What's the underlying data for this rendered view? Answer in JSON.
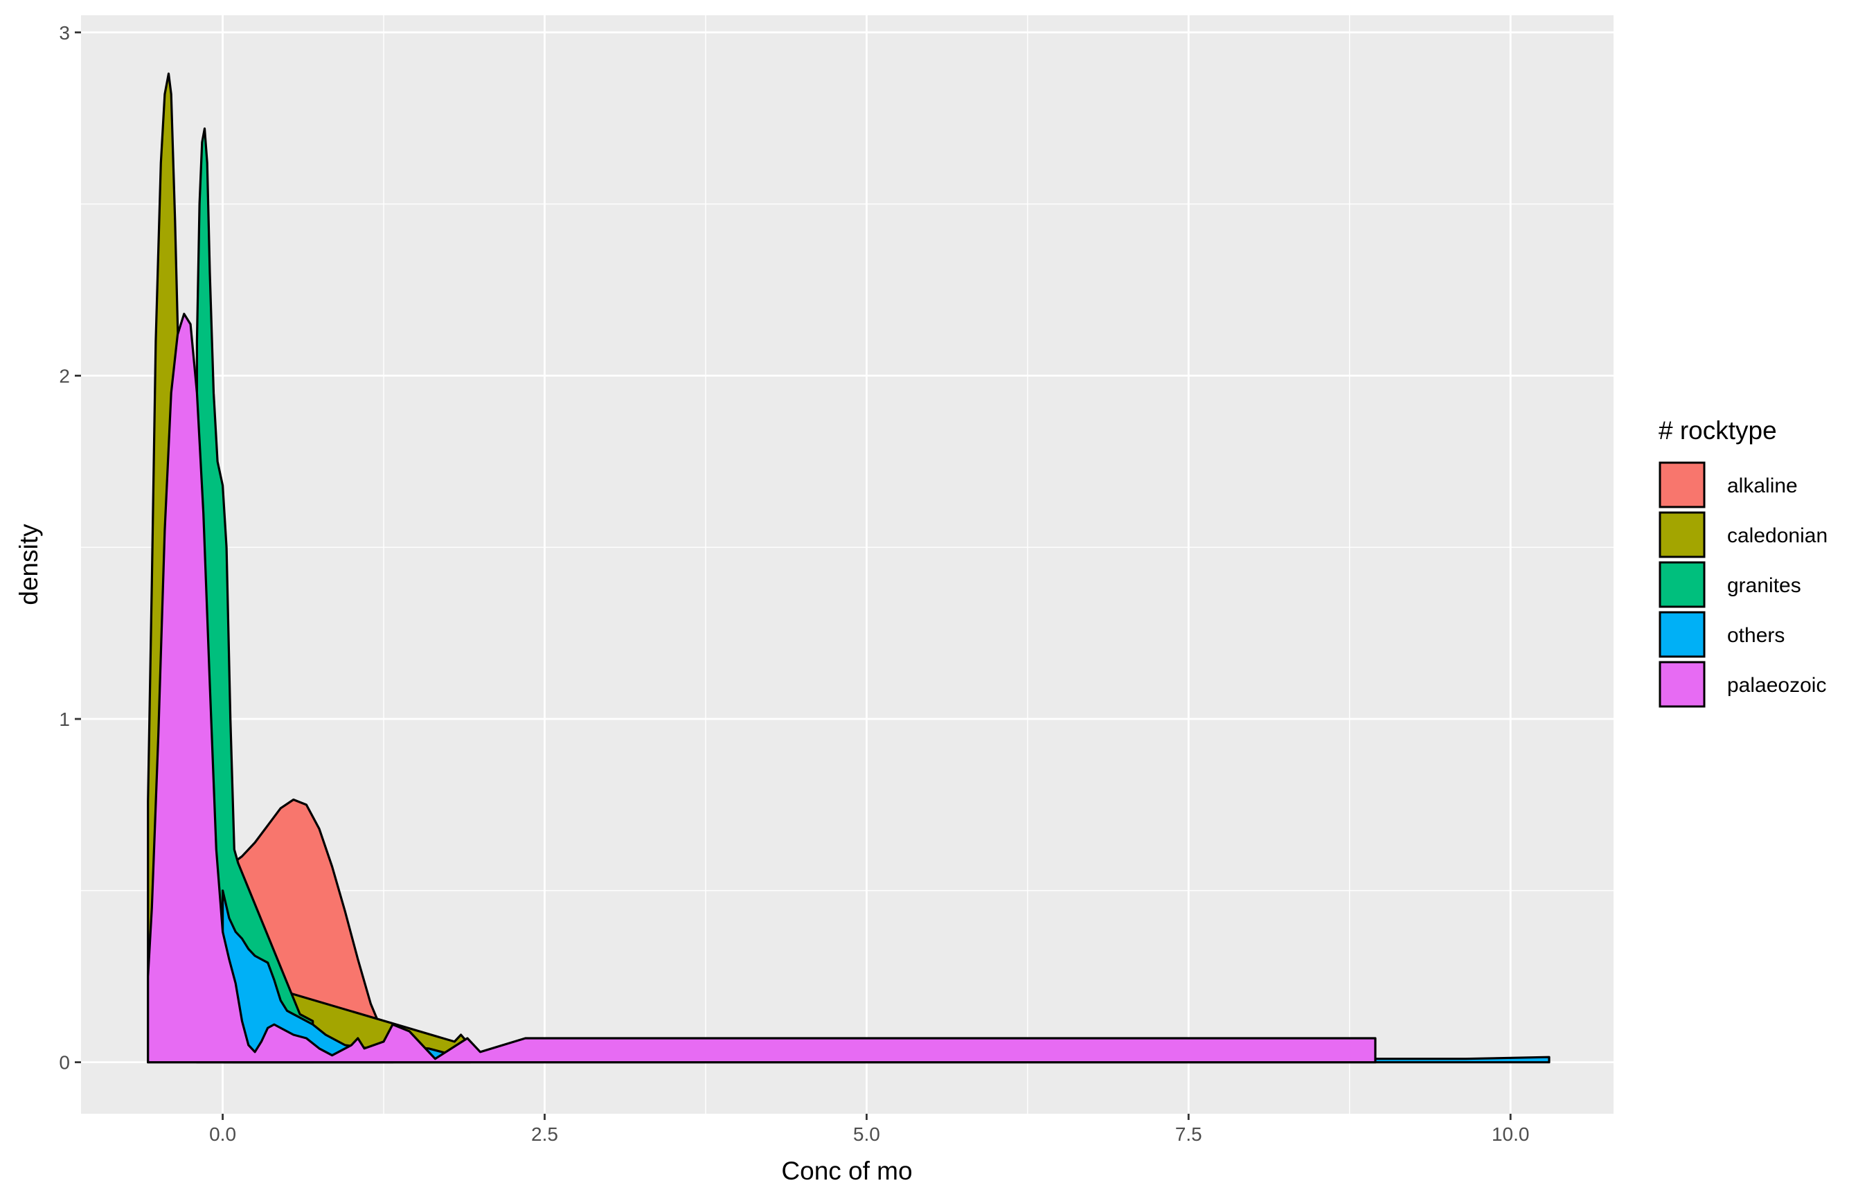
{
  "chart_data": {
    "type": "area",
    "subtype": "density",
    "title": "",
    "xlabel": "Conc of  mo",
    "ylabel": "density",
    "xlim": [
      -1.1,
      10.8
    ],
    "ylim": [
      -0.15,
      3.05
    ],
    "x_ticks": [
      0.0,
      2.5,
      5.0,
      7.5,
      10.0
    ],
    "x_tick_labels": [
      "0.0",
      "2.5",
      "5.0",
      "7.5",
      "10.0"
    ],
    "y_ticks": [
      0,
      1,
      2,
      3
    ],
    "y_tick_labels": [
      "0",
      "1",
      "2",
      "3"
    ],
    "grid": true,
    "legend": {
      "title": "# rocktype",
      "position": "right",
      "entries": [
        "alkaline",
        "caledonian",
        "granites",
        "others",
        "palaeozoic"
      ]
    },
    "series": [
      {
        "name": "alkaline",
        "color": "#F8766D",
        "points": [
          [
            0.08,
            0.58
          ],
          [
            0.15,
            0.6
          ],
          [
            0.25,
            0.64
          ],
          [
            0.35,
            0.69
          ],
          [
            0.45,
            0.74
          ],
          [
            0.55,
            0.765
          ],
          [
            0.65,
            0.75
          ],
          [
            0.75,
            0.68
          ],
          [
            0.85,
            0.57
          ],
          [
            0.95,
            0.44
          ],
          [
            1.05,
            0.3
          ],
          [
            1.15,
            0.17
          ],
          [
            1.25,
            0.08
          ],
          [
            1.32,
            0.04
          ]
        ]
      },
      {
        "name": "caledonian",
        "color": "#A3A500",
        "points": [
          [
            -0.58,
            0.76
          ],
          [
            -0.55,
            1.4
          ],
          [
            -0.52,
            2.1
          ],
          [
            -0.48,
            2.62
          ],
          [
            -0.45,
            2.82
          ],
          [
            -0.42,
            2.88
          ],
          [
            -0.4,
            2.82
          ],
          [
            -0.37,
            2.45
          ],
          [
            -0.33,
            1.85
          ],
          [
            -0.29,
            1.2
          ],
          [
            -0.25,
            0.72
          ],
          [
            -0.2,
            0.42
          ],
          [
            -0.15,
            0.3
          ],
          [
            -0.1,
            0.27
          ],
          [
            1.8,
            0.06
          ],
          [
            1.85,
            0.08
          ],
          [
            1.92,
            0.05
          ]
        ]
      },
      {
        "name": "granites",
        "color": "#00BF7D",
        "points": [
          [
            -0.2,
            2.1
          ],
          [
            -0.18,
            2.5
          ],
          [
            -0.16,
            2.68
          ],
          [
            -0.14,
            2.72
          ],
          [
            -0.12,
            2.62
          ],
          [
            -0.1,
            2.3
          ],
          [
            -0.07,
            1.95
          ],
          [
            -0.04,
            1.75
          ],
          [
            0.0,
            1.68
          ],
          [
            0.03,
            1.5
          ],
          [
            0.06,
            1.0
          ],
          [
            0.09,
            0.62
          ],
          [
            0.12,
            0.58
          ],
          [
            0.6,
            0.14
          ],
          [
            0.7,
            0.12
          ]
        ]
      },
      {
        "name": "others",
        "color": "#00B0F6",
        "points": [
          [
            0.0,
            0.5
          ],
          [
            0.05,
            0.42
          ],
          [
            0.1,
            0.38
          ],
          [
            0.15,
            0.36
          ],
          [
            0.2,
            0.33
          ],
          [
            0.25,
            0.31
          ],
          [
            0.3,
            0.3
          ],
          [
            0.35,
            0.29
          ],
          [
            0.4,
            0.24
          ],
          [
            0.45,
            0.18
          ],
          [
            0.5,
            0.15
          ],
          [
            0.55,
            0.14
          ],
          [
            0.6,
            0.13
          ],
          [
            0.7,
            0.11
          ],
          [
            0.8,
            0.08
          ],
          [
            0.95,
            0.05
          ],
          [
            1.15,
            0.04
          ],
          [
            1.4,
            0.045
          ],
          [
            1.6,
            0.04
          ],
          [
            1.8,
            0.02
          ],
          [
            2.8,
            0.01
          ],
          [
            3.2,
            0.01
          ],
          [
            4.4,
            0.01
          ],
          [
            5.3,
            0.01
          ],
          [
            5.55,
            0.01
          ],
          [
            5.85,
            0.01
          ],
          [
            7.25,
            0.01
          ],
          [
            9.65,
            0.01
          ],
          [
            10.3,
            0.015
          ]
        ]
      },
      {
        "name": "palaeozoic",
        "color": "#E76BF3",
        "points": [
          [
            -0.58,
            0.25
          ],
          [
            -0.55,
            0.45
          ],
          [
            -0.5,
            0.95
          ],
          [
            -0.45,
            1.55
          ],
          [
            -0.4,
            1.95
          ],
          [
            -0.35,
            2.12
          ],
          [
            -0.3,
            2.18
          ],
          [
            -0.25,
            2.15
          ],
          [
            -0.2,
            1.95
          ],
          [
            -0.15,
            1.6
          ],
          [
            -0.1,
            1.1
          ],
          [
            -0.05,
            0.62
          ],
          [
            0.0,
            0.38
          ],
          [
            0.05,
            0.3
          ],
          [
            0.1,
            0.23
          ],
          [
            0.15,
            0.12
          ],
          [
            0.2,
            0.05
          ],
          [
            0.25,
            0.03
          ],
          [
            0.3,
            0.06
          ],
          [
            0.35,
            0.1
          ],
          [
            0.4,
            0.11
          ],
          [
            0.45,
            0.1
          ],
          [
            0.55,
            0.08
          ],
          [
            0.65,
            0.07
          ],
          [
            0.75,
            0.04
          ],
          [
            0.85,
            0.02
          ],
          [
            1.0,
            0.05
          ],
          [
            1.05,
            0.07
          ],
          [
            1.1,
            0.04
          ],
          [
            1.25,
            0.06
          ],
          [
            1.32,
            0.11
          ],
          [
            1.45,
            0.09
          ],
          [
            1.55,
            0.05
          ],
          [
            1.65,
            0.01
          ],
          [
            1.9,
            0.07
          ],
          [
            2.0,
            0.03
          ],
          [
            2.35,
            0.07
          ],
          [
            2.6,
            0.07
          ],
          [
            4.15,
            0.07
          ],
          [
            8.95,
            0.07
          ]
        ]
      }
    ]
  }
}
